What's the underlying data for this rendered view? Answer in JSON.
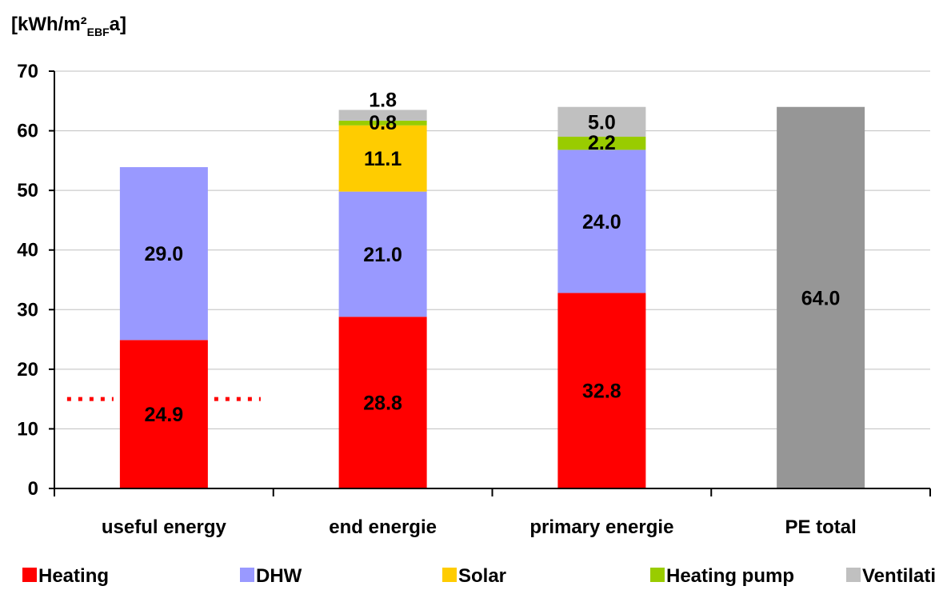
{
  "chart_data": {
    "type": "bar",
    "stacked": true,
    "unit_label": {
      "main": "[kWh/m²",
      "subscript": "EBF",
      "tail": "a]"
    },
    "categories": [
      "useful energy",
      "end energie",
      "primary energie",
      "PE total"
    ],
    "ylim": [
      0,
      70
    ],
    "yticks": [
      0,
      10,
      20,
      30,
      40,
      50,
      60,
      70
    ],
    "grid": true,
    "legend_position": "bottom",
    "series": [
      {
        "name": "Heating",
        "color": "#ff0000",
        "values": [
          24.9,
          28.8,
          32.8,
          0
        ]
      },
      {
        "name": "DHW",
        "color": "#9999ff",
        "values": [
          29.0,
          21.0,
          24.0,
          0
        ]
      },
      {
        "name": "Solar",
        "color": "#ffcc00",
        "values": [
          0,
          11.1,
          0,
          0
        ]
      },
      {
        "name": "Heating pump",
        "color": "#99cc00",
        "values": [
          0,
          0.8,
          2.2,
          0
        ]
      },
      {
        "name": "Ventilation",
        "color": "#c0c0c0",
        "values": [
          0,
          1.8,
          5.0,
          0
        ]
      }
    ],
    "total_bar": {
      "category": "PE total",
      "value": 64.0,
      "color": "#969696"
    },
    "data_labels": [
      {
        "category": "useful energy",
        "series": "Heating",
        "text": "24.9"
      },
      {
        "category": "useful energy",
        "series": "DHW",
        "text": "29.0"
      },
      {
        "category": "end energie",
        "series": "Heating",
        "text": "28.8"
      },
      {
        "category": "end energie",
        "series": "DHW",
        "text": "21.0"
      },
      {
        "category": "end energie",
        "series": "Solar",
        "text": "11.1"
      },
      {
        "category": "end energie",
        "series": "Heating pump",
        "text": "0.8"
      },
      {
        "category": "end energie",
        "series": "Ventilation",
        "text": "1.8"
      },
      {
        "category": "primary energie",
        "series": "Heating",
        "text": "32.8"
      },
      {
        "category": "primary energie",
        "series": "DHW",
        "text": "24.0"
      },
      {
        "category": "primary energie",
        "series": "Heating pump",
        "text": "2.2"
      },
      {
        "category": "primary energie",
        "series": "Ventilation",
        "text": "5.0"
      },
      {
        "category": "PE total",
        "series": "total",
        "text": "64.0"
      }
    ],
    "reference_line": {
      "value": 15,
      "color": "#ff0000",
      "style": "dotted",
      "category": "useful energy"
    }
  }
}
